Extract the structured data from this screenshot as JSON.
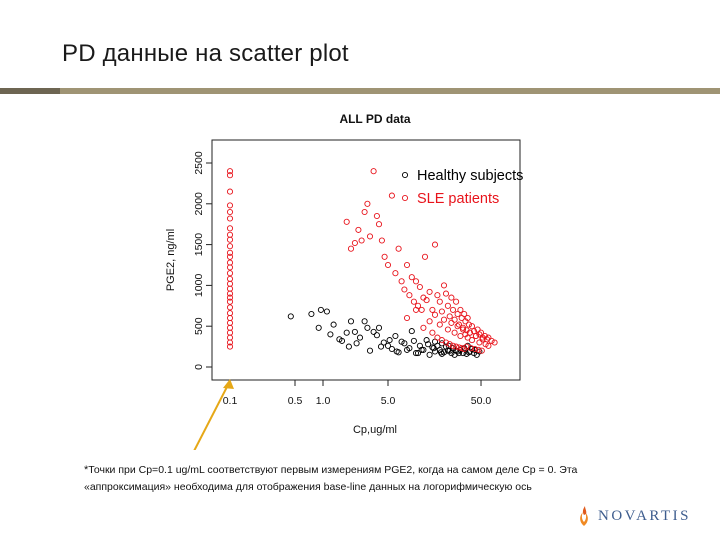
{
  "slide": {
    "title": "PD данные на scatter plot",
    "footnote_marker": "*",
    "footnote_line1": "Точки при Cp=0.1 ug/mL соответствуют первым измерениям PGE2, когда на самом деле Cp = 0. Эта",
    "footnote_line2": "«аппроксимация» необходима для отображения base-line данных на логорифмическую ось",
    "logo_text": "NOVARTIS"
  },
  "colors": {
    "healthy": "#000000",
    "sle": "#e8141c",
    "arrow": "#e6a817",
    "rule": "#9f9474",
    "logo": "#3e5d8e"
  },
  "icons": [
    "novartis-logo-icon",
    "arrow-icon"
  ],
  "chart_data": {
    "type": "scatter",
    "title": "ALL PD data",
    "xlabel": "Cp,ug/ml",
    "ylabel": "PGE2, ng/ml",
    "x_scale": "log",
    "xlim": [
      0.1,
      80
    ],
    "ylim": [
      0,
      2500
    ],
    "x_ticks": [
      0.1,
      0.5,
      1.0,
      5.0,
      50.0
    ],
    "x_tick_labels": [
      "0.1",
      "0.5",
      "1.0",
      "5.0",
      "50.0"
    ],
    "y_ticks": [
      0,
      500,
      1000,
      1500,
      2000,
      2500
    ],
    "y_tick_labels": [
      "0",
      "500",
      "1000",
      "1500",
      "2000",
      "2500"
    ],
    "legend_position": "top-right",
    "grid": false,
    "marker": "open-circle",
    "series": [
      {
        "name": "Healthy subjects",
        "color": "#000000",
        "x": [
          0.45,
          0.75,
          0.95,
          1.1,
          1.3,
          1.6,
          1.8,
          2.0,
          2.2,
          2.5,
          2.8,
          3.2,
          3.5,
          4.0,
          4.5,
          5.0,
          5.5,
          6.0,
          6.5,
          7.0,
          8.0,
          9.0,
          10.0,
          11.0,
          12.0,
          13.0,
          14.0,
          15.0,
          16.0,
          17.0,
          18.0,
          19.0,
          20.0,
          21.0,
          22.0,
          24.0,
          25.0,
          26.0,
          28.0,
          30.0,
          32.0,
          35.0,
          38.0,
          40.0,
          42.0,
          45.0,
          0.9,
          1.2,
          1.5,
          1.9,
          2.3,
          3.0,
          3.8,
          4.2,
          5.2,
          6.2,
          7.5,
          8.5,
          9.5,
          10.5,
          11.5,
          13.5,
          15.5,
          18.5,
          22.5,
          27.0,
          33.0,
          37.0,
          43.0,
          48.0,
          16.0,
          19.0,
          23.0,
          29.0,
          36.0
        ],
        "y": [
          620,
          650,
          700,
          680,
          520,
          320,
          420,
          560,
          430,
          360,
          560,
          200,
          430,
          480,
          300,
          260,
          220,
          380,
          180,
          310,
          210,
          440,
          170,
          260,
          210,
          330,
          150,
          240,
          190,
          260,
          210,
          160,
          180,
          250,
          200,
          170,
          230,
          150,
          190,
          210,
          170,
          160,
          190,
          220,
          170,
          150,
          480,
          400,
          340,
          250,
          290,
          480,
          390,
          250,
          330,
          190,
          290,
          230,
          320,
          170,
          210,
          280,
          230,
          180,
          260,
          200,
          230,
          180,
          210,
          190,
          310,
          290,
          200,
          170,
          260
        ]
      },
      {
        "name": "SLE patients",
        "color": "#e8141c",
        "x": [
          0.1,
          0.1,
          0.1,
          0.1,
          0.1,
          0.1,
          0.1,
          0.1,
          0.1,
          0.1,
          0.1,
          0.1,
          0.1,
          0.1,
          0.1,
          0.1,
          0.1,
          0.1,
          0.1,
          0.1,
          0.1,
          0.1,
          0.1,
          0.1,
          0.1,
          0.1,
          0.1,
          0.1,
          0.1,
          0.1,
          1.8,
          2.0,
          2.2,
          2.4,
          2.6,
          2.8,
          3.0,
          3.2,
          3.5,
          3.8,
          4.0,
          4.3,
          4.6,
          5.0,
          5.5,
          6.0,
          6.5,
          7.0,
          7.5,
          8.0,
          8.5,
          9.0,
          9.5,
          10.0,
          10.5,
          11.0,
          11.5,
          12.0,
          12.5,
          13.0,
          14.0,
          15.0,
          16.0,
          17.0,
          18.0,
          19.0,
          20.0,
          21.0,
          22.0,
          23.0,
          24.0,
          25.0,
          26.0,
          27.0,
          28.0,
          29.0,
          30.0,
          31.0,
          32.0,
          33.0,
          34.0,
          35.0,
          36.0,
          37.0,
          38.0,
          40.0,
          42.0,
          44.0,
          46.0,
          48.0,
          50.0,
          52.0,
          55.0,
          58.0,
          60.0,
          65.0,
          70.0,
          8.0,
          10.0,
          12.0,
          14.0,
          16.0,
          18.0,
          20.0,
          22.0,
          24.0,
          26.0,
          28.0,
          30.0,
          32.0,
          34.0,
          36.0,
          38.0,
          40.0,
          44.0,
          48.0,
          52.0,
          56.0,
          60.0,
          15.0,
          17.0,
          19.0,
          21.0,
          23.0,
          25.0,
          27.0,
          29.0,
          31.0,
          33.0,
          35.0,
          39.0,
          43.0,
          47.0,
          51.0
        ],
        "y": [
          2400,
          2350,
          2150,
          1980,
          1900,
          1820,
          1700,
          1620,
          1560,
          1480,
          1400,
          1350,
          1280,
          1220,
          1150,
          1080,
          1020,
          960,
          900,
          850,
          800,
          730,
          660,
          600,
          540,
          480,
          420,
          360,
          300,
          250,
          1780,
          1450,
          1520,
          1680,
          1550,
          1900,
          2000,
          1600,
          2400,
          1850,
          1750,
          1550,
          1350,
          1250,
          2100,
          1150,
          1450,
          1050,
          950,
          1250,
          880,
          1100,
          800,
          1050,
          750,
          980,
          700,
          850,
          1350,
          820,
          920,
          700,
          1500,
          880,
          800,
          680,
          1000,
          900,
          750,
          620,
          850,
          700,
          580,
          800,
          650,
          520,
          700,
          600,
          480,
          650,
          560,
          450,
          600,
          520,
          420,
          500,
          440,
          380,
          460,
          400,
          420,
          360,
          380,
          340,
          360,
          320,
          300,
          600,
          700,
          480,
          560,
          640,
          520,
          580,
          460,
          540,
          420,
          500,
          380,
          460,
          400,
          360,
          420,
          330,
          380,
          300,
          340,
          280,
          260,
          420,
          360,
          330,
          300,
          280,
          260,
          250,
          240,
          230,
          220,
          250,
          230,
          220,
          210,
          200
        ]
      }
    ]
  }
}
